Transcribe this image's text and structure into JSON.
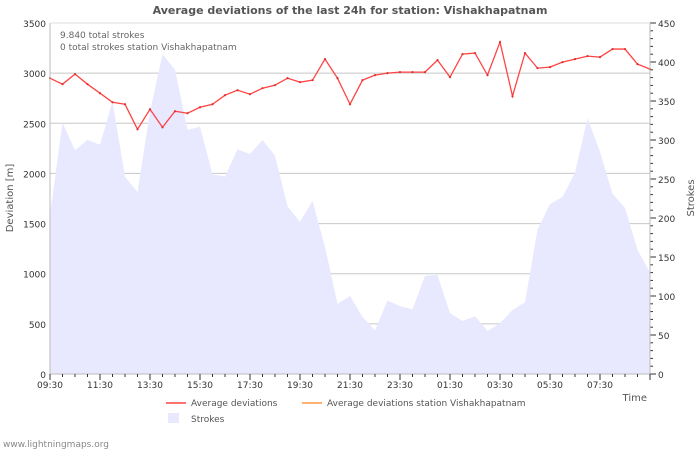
{
  "chart_data": {
    "type": "line",
    "title": "Average deviations of the last 24h for station: Vishakhapatnam",
    "annotations": [
      "9.840 total strokes",
      "0 total strokes station Vishakhapatnam"
    ],
    "xlabel": "Time",
    "ylabel": "Deviation  [m]",
    "y2label": "Strokes",
    "ylim": [
      0,
      3500
    ],
    "y2lim": [
      0,
      450
    ],
    "yticks": [
      "0",
      "500",
      "1000",
      "1500",
      "2000",
      "2500",
      "3000",
      "3500"
    ],
    "y2ticks": [
      "0",
      "50",
      "100",
      "150",
      "200",
      "250",
      "300",
      "350",
      "400",
      "450"
    ],
    "xticks": [
      "09:30",
      "11:30",
      "13:30",
      "15:30",
      "17:30",
      "19:30",
      "21:30",
      "23:30",
      "01:30",
      "03:30",
      "05:30",
      "07:30"
    ],
    "x_step_minutes": 30,
    "grid": true,
    "legend_position": "bottom",
    "series": [
      {
        "name": "Average deviations",
        "kind": "line",
        "axis": "left",
        "color": "#ff4444",
        "values": [
          2950,
          2890,
          2990,
          2890,
          2800,
          2710,
          2690,
          2440,
          2640,
          2460,
          2620,
          2600,
          2660,
          2690,
          2780,
          2830,
          2790,
          2850,
          2880,
          2950,
          2910,
          2930,
          3140,
          2950,
          2690,
          2930,
          2980,
          3000,
          3010,
          3010,
          3010,
          3130,
          2960,
          3190,
          3200,
          2980,
          3310,
          2770,
          3200,
          3050,
          3060,
          3110,
          3140,
          3170,
          3160,
          3240,
          3240,
          3090,
          3040
        ]
      },
      {
        "name": "Average deviations station Vishakhapatnam",
        "kind": "line",
        "axis": "left",
        "color": "#ff9944",
        "values": []
      },
      {
        "name": "Strokes",
        "kind": "area",
        "axis": "right",
        "color": "#e8e8ff",
        "values": [
          204,
          322,
          287,
          300,
          294,
          349,
          253,
          233,
          336,
          410,
          390,
          313,
          317,
          256,
          253,
          288,
          282,
          300,
          280,
          215,
          195,
          222,
          163,
          90,
          100,
          73,
          56,
          94,
          87,
          83,
          126,
          127,
          78,
          68,
          74,
          55,
          65,
          82,
          92,
          185,
          218,
          227,
          258,
          328,
          285,
          231,
          213,
          159,
          130
        ]
      }
    ]
  },
  "footer": "www.lightningmaps.org"
}
